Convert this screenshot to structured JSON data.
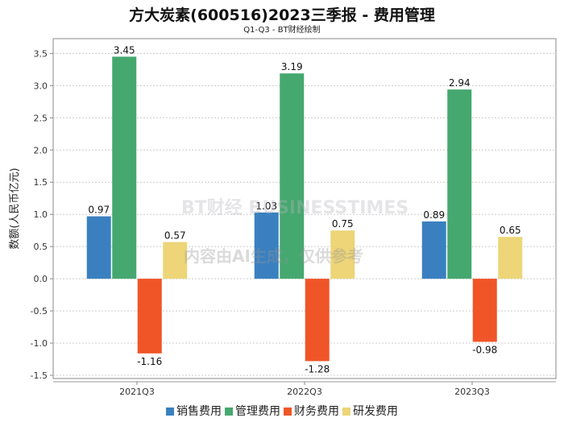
{
  "chart_data": {
    "type": "bar",
    "title": "方大炭素(600516)2023三季报 - 费用管理",
    "subtitle": "Q1-Q3 - BT财经绘制",
    "ylabel": "数额(人民币亿元)",
    "xlabel": "",
    "categories": [
      "2021Q3",
      "2022Q3",
      "2023Q3"
    ],
    "series": [
      {
        "name": "销售费用",
        "color": "#3a80c0",
        "values": [
          0.97,
          1.03,
          0.89
        ]
      },
      {
        "name": "管理费用",
        "color": "#45a86f",
        "values": [
          3.45,
          3.19,
          2.94
        ]
      },
      {
        "name": "财务费用",
        "color": "#f05528",
        "values": [
          -1.16,
          -1.28,
          -0.98
        ]
      },
      {
        "name": "研发费用",
        "color": "#edd578",
        "values": [
          0.57,
          0.75,
          0.65
        ]
      }
    ],
    "yticks": [
      3.5,
      3.0,
      2.5,
      2.0,
      1.5,
      1.0,
      0.5,
      0.0,
      -0.5,
      -1.0,
      -1.5
    ],
    "ylim": [
      -1.55,
      3.73
    ],
    "grid": true,
    "legend": "bottom",
    "watermark": [
      "BT财经 BUSINESSTIMES",
      "内容由AI生成，仅供参考"
    ]
  }
}
